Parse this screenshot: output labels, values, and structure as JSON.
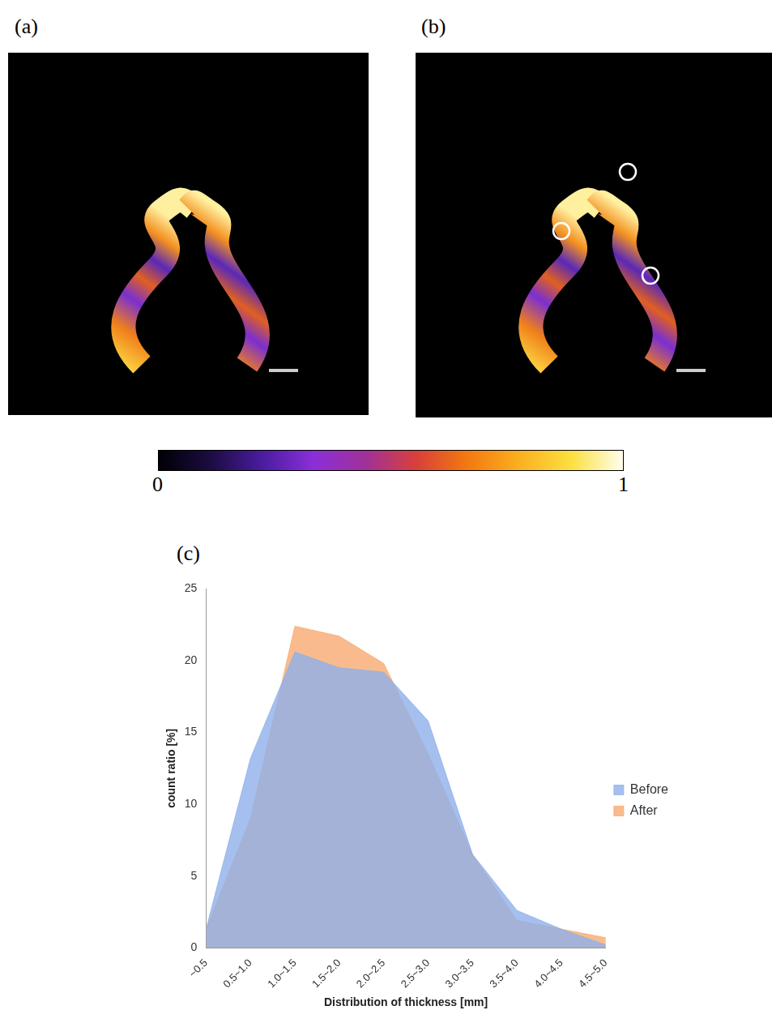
{
  "panel_labels": [
    "(a)",
    "(b)",
    "(c)"
  ],
  "colorbar": {
    "range": [
      0,
      1
    ],
    "ticks": [
      0,
      1
    ]
  },
  "chart_data": {
    "type": "area",
    "x_label": "Distribution of thickness [mm]",
    "y_label": "count ratio [%]",
    "categories": [
      "~0.5",
      "0.5~1.0",
      "1.0~1.5",
      "1.5~2.0",
      "2.0~2.5",
      "2.5~3.0",
      "3.0~3.5",
      "3.5~4.0",
      "4.0~4.5",
      "4.5~5.0"
    ],
    "series": [
      {
        "name": "Before",
        "color": "#8fb0ea",
        "values": [
          1.3,
          13.2,
          20.6,
          19.5,
          19.2,
          15.8,
          6.5,
          2.6,
          1.3,
          0.2
        ]
      },
      {
        "name": "After",
        "color": "#f7aa70",
        "values": [
          1.3,
          9.0,
          22.4,
          21.7,
          19.8,
          13.5,
          6.5,
          1.9,
          1.3,
          0.7
        ]
      }
    ],
    "ylim": [
      0,
      25
    ],
    "yticks": [
      0,
      5,
      10,
      15,
      20,
      25
    ],
    "grid": false,
    "legend": "right"
  }
}
